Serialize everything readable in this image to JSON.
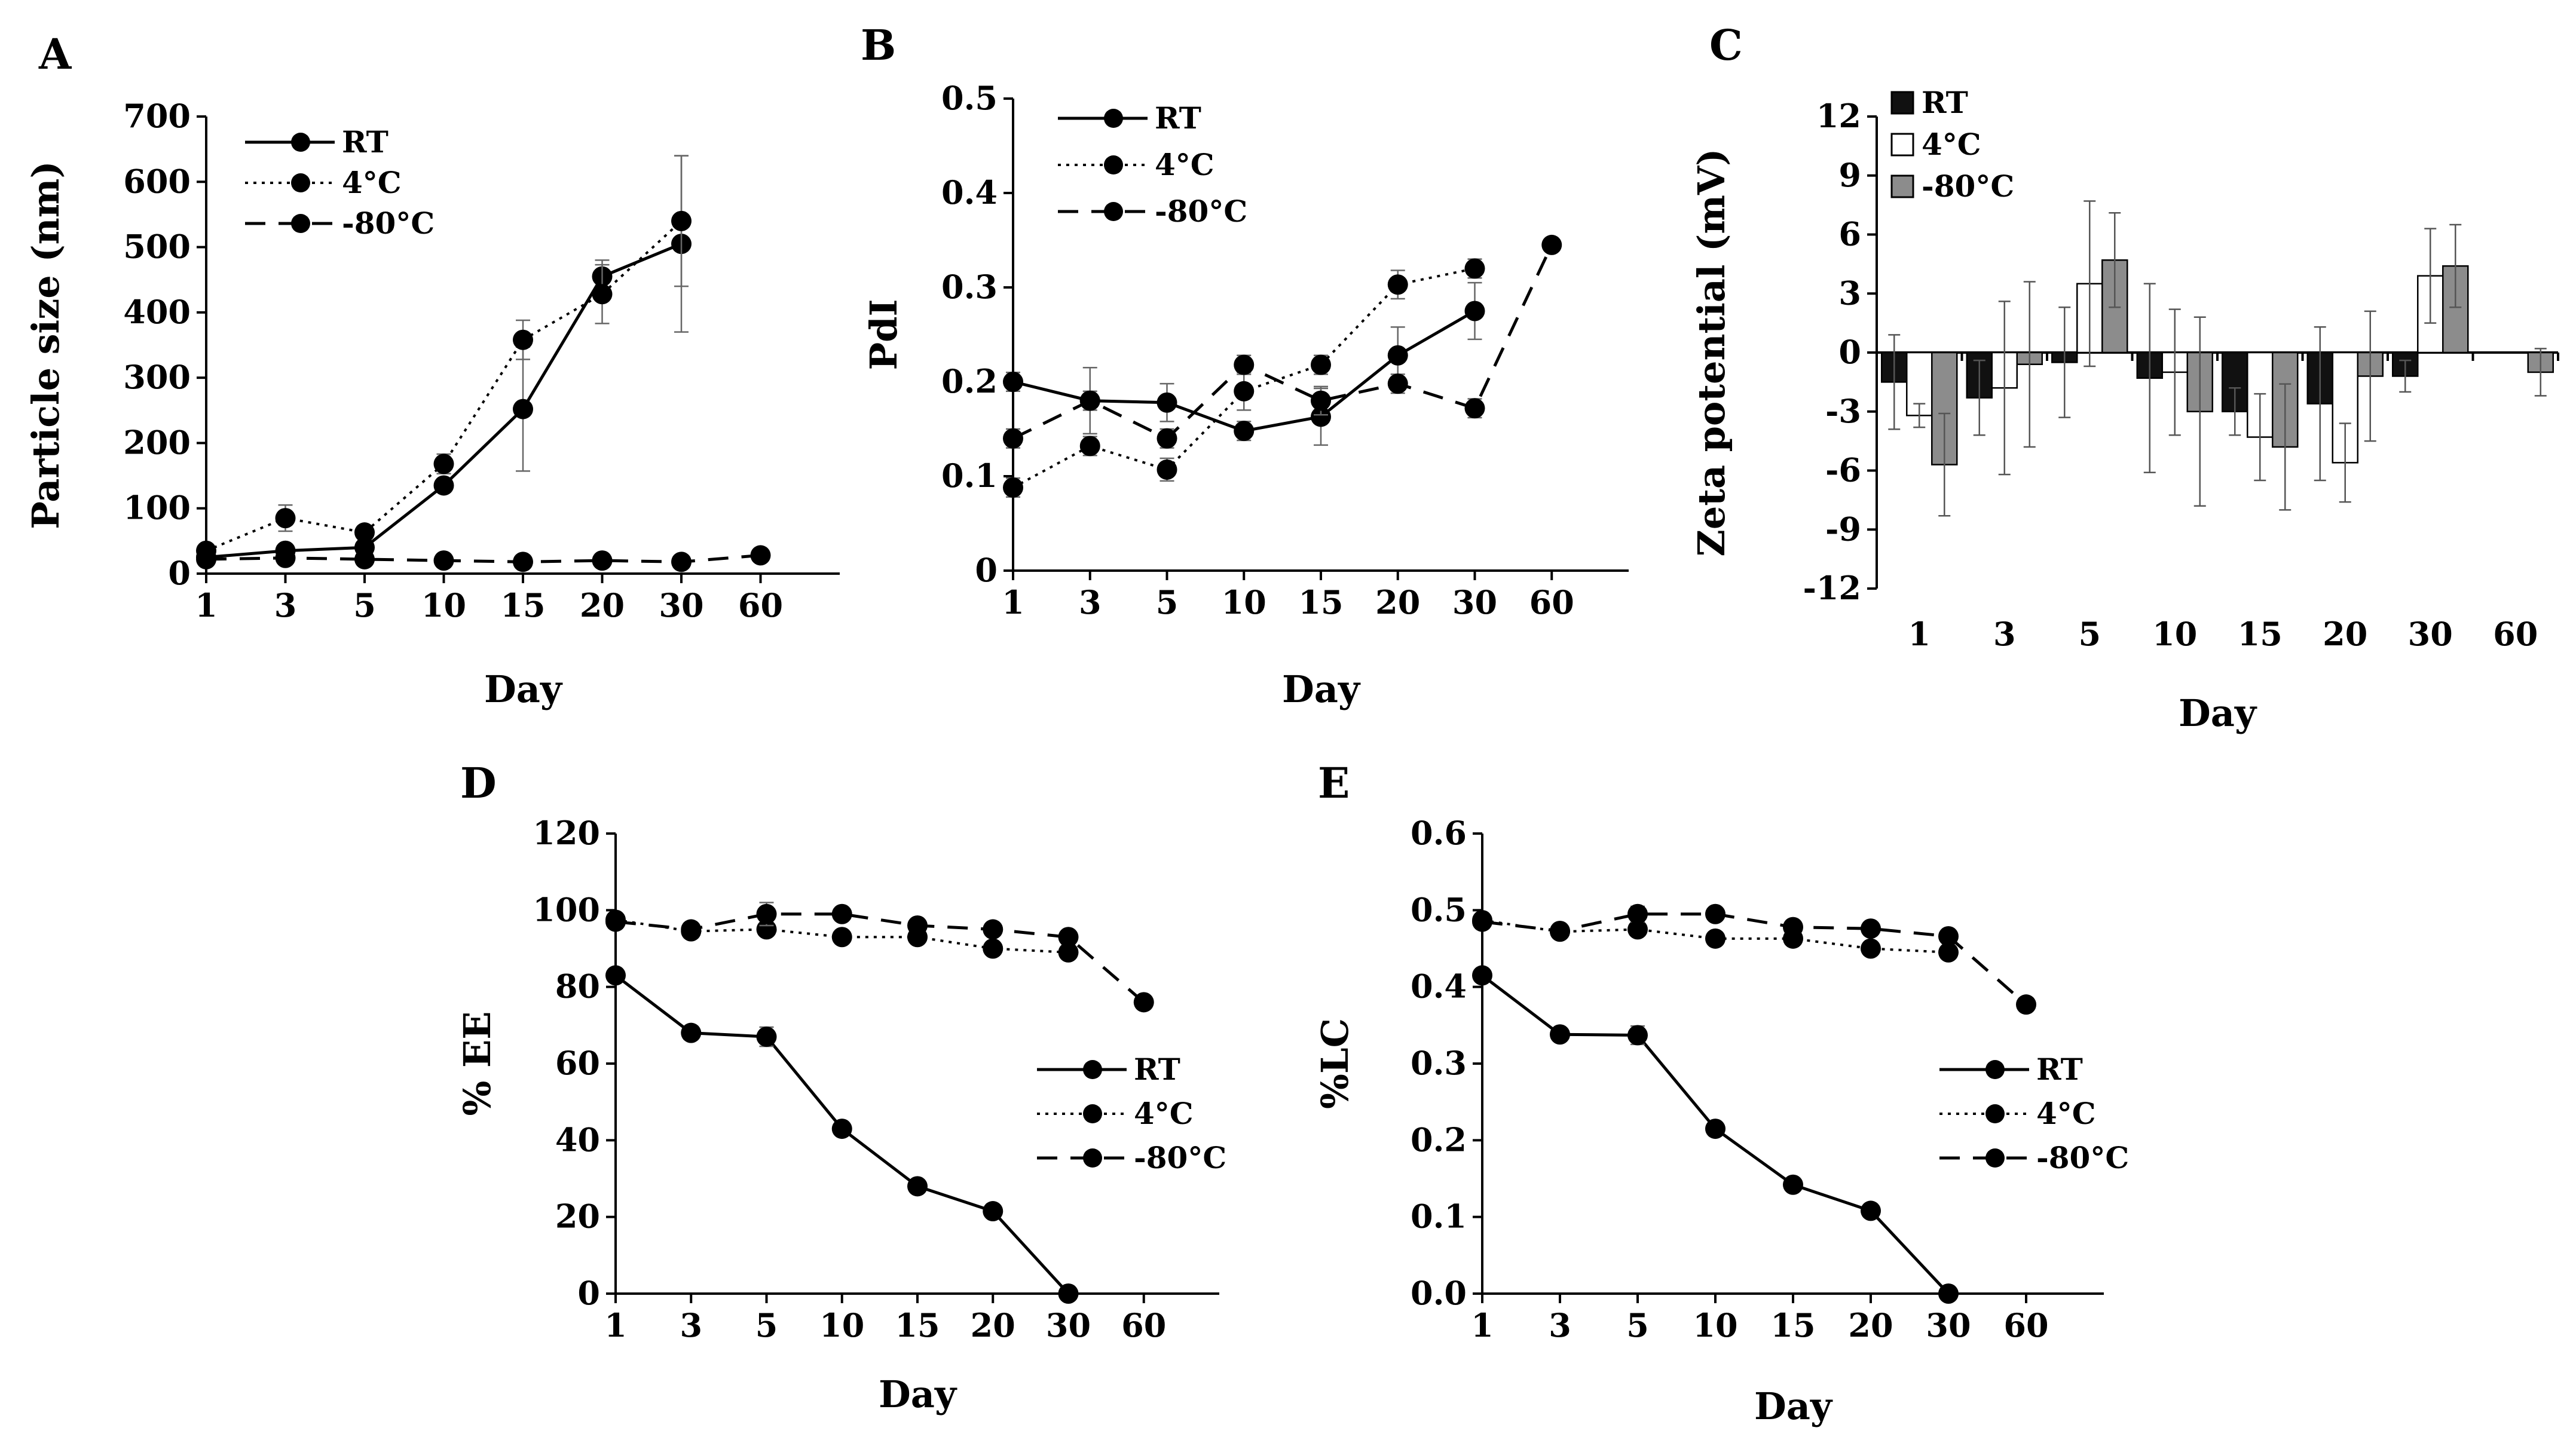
{
  "chart_data": [
    {
      "panel": "A",
      "type": "line",
      "xlabel": "Day",
      "ylabel": "Particle size (nm)",
      "categories": [
        "1",
        "3",
        "5",
        "10",
        "15",
        "20",
        "30",
        "60"
      ],
      "ylim": [
        0,
        700
      ],
      "yticks": [
        "0",
        "100",
        "200",
        "300",
        "400",
        "500",
        "600",
        "700"
      ],
      "legend": "top-left",
      "series": [
        {
          "name": "RT",
          "style": "solid",
          "values": [
            25,
            35,
            40,
            135,
            252,
            455,
            505,
            null
          ],
          "errors": [
            4,
            6,
            6,
            10,
            95,
            25,
            135,
            null
          ]
        },
        {
          "name": "4°C",
          "style": "dotted",
          "values": [
            35,
            85,
            63,
            168,
            358,
            428,
            540,
            null
          ],
          "errors": [
            5,
            20,
            8,
            15,
            30,
            45,
            100,
            null
          ]
        },
        {
          "name": "-80°C",
          "style": "dashed",
          "values": [
            22,
            24,
            22,
            20,
            18,
            20,
            18,
            28
          ],
          "errors": [
            2,
            2,
            2,
            2,
            2,
            2,
            2,
            3
          ]
        }
      ]
    },
    {
      "panel": "B",
      "type": "line",
      "xlabel": "Day",
      "ylabel": "PdI",
      "categories": [
        "1",
        "3",
        "5",
        "10",
        "15",
        "20",
        "30",
        "60"
      ],
      "ylim": [
        0,
        0.5
      ],
      "yticks": [
        "0",
        "0.1",
        "0.2",
        "0.3",
        "0.4",
        "0.5"
      ],
      "legend": "top-left",
      "series": [
        {
          "name": "RT",
          "style": "solid",
          "values": [
            0.2,
            0.18,
            0.178,
            0.148,
            0.163,
            0.228,
            0.275,
            null
          ],
          "errors": [
            0.01,
            0.035,
            0.02,
            0.01,
            0.03,
            0.03,
            0.03,
            null
          ]
        },
        {
          "name": "4°C",
          "style": "dotted",
          "values": [
            0.088,
            0.132,
            0.107,
            0.19,
            0.218,
            0.303,
            0.32,
            null
          ],
          "errors": [
            0.01,
            0.01,
            0.012,
            0.02,
            0.01,
            0.015,
            0.01,
            null
          ]
        },
        {
          "name": "-80°C",
          "style": "dashed",
          "values": [
            0.14,
            0.18,
            0.14,
            0.218,
            0.18,
            0.198,
            0.172,
            0.345
          ],
          "errors": [
            0.01,
            0.01,
            0.01,
            0.01,
            0.015,
            0.01,
            0.01,
            0.005
          ]
        }
      ]
    },
    {
      "panel": "C",
      "type": "bar",
      "xlabel": "Day",
      "ylabel": "Zeta potential (mV)",
      "categories": [
        "1",
        "3",
        "5",
        "10",
        "15",
        "20",
        "30",
        "60"
      ],
      "ylim": [
        -12,
        12
      ],
      "yticks": [
        "-12",
        "-9",
        "-6",
        "-3",
        "0",
        "3",
        "6",
        "9",
        "12"
      ],
      "legend": "top-left",
      "series": [
        {
          "name": "RT",
          "fill": "#111111",
          "values": [
            -1.5,
            -2.3,
            -0.5,
            -1.3,
            -3.0,
            -2.6,
            -1.2,
            null
          ],
          "errors": [
            2.4,
            1.9,
            2.8,
            4.8,
            1.2,
            3.9,
            0.8,
            null
          ]
        },
        {
          "name": "4°C",
          "fill": "#ffffff",
          "values": [
            -3.2,
            -1.8,
            3.5,
            -1.0,
            -4.3,
            -5.6,
            3.9,
            null
          ],
          "errors": [
            0.6,
            4.4,
            4.2,
            3.2,
            2.2,
            2.0,
            2.4,
            null
          ]
        },
        {
          "name": "-80°C",
          "fill": "#8c8c8c",
          "values": [
            -5.7,
            -0.6,
            4.7,
            -3.0,
            -4.8,
            -1.2,
            4.4,
            -1.0
          ],
          "errors": [
            2.6,
            4.2,
            2.4,
            4.8,
            3.2,
            3.3,
            2.1,
            1.2
          ]
        }
      ]
    },
    {
      "panel": "D",
      "type": "line",
      "xlabel": "Day",
      "ylabel": "% EE",
      "categories": [
        "1",
        "3",
        "5",
        "10",
        "15",
        "20",
        "30",
        "60"
      ],
      "ylim": [
        0,
        120
      ],
      "yticks": [
        "0",
        "20",
        "40",
        "60",
        "80",
        "100",
        "120"
      ],
      "legend": "bottom-right",
      "series": [
        {
          "name": "RT",
          "style": "solid",
          "values": [
            83,
            68,
            67,
            43,
            28,
            21.5,
            0,
            null
          ],
          "errors": [
            1,
            1,
            2.5,
            1,
            1,
            1,
            0.5,
            null
          ]
        },
        {
          "name": "4°C",
          "style": "dotted",
          "values": [
            97.5,
            94.5,
            95,
            93,
            93,
            90,
            89,
            null
          ],
          "errors": [
            1,
            1,
            1,
            1,
            1,
            1,
            1,
            null
          ]
        },
        {
          "name": "-80°C",
          "style": "dashed",
          "values": [
            97,
            95,
            99,
            99,
            96,
            95,
            93,
            76
          ],
          "errors": [
            1,
            1,
            3,
            1,
            1,
            1,
            1,
            1
          ]
        }
      ]
    },
    {
      "panel": "E",
      "type": "line",
      "xlabel": "Day",
      "ylabel": "%LC",
      "categories": [
        "1",
        "3",
        "5",
        "10",
        "15",
        "20",
        "30",
        "60"
      ],
      "ylim": [
        0,
        0.6
      ],
      "yticks": [
        "0.0",
        "0.1",
        "0.2",
        "0.3",
        "0.4",
        "0.5",
        "0.6"
      ],
      "legend": "bottom-right",
      "series": [
        {
          "name": "RT",
          "style": "solid",
          "values": [
            0.415,
            0.338,
            0.337,
            0.215,
            0.142,
            0.108,
            0,
            null
          ],
          "errors": [
            0.005,
            0.005,
            0.012,
            0.005,
            0.005,
            0.005,
            0.003,
            null
          ]
        },
        {
          "name": "4°C",
          "style": "dotted",
          "values": [
            0.487,
            0.472,
            0.475,
            0.463,
            0.463,
            0.45,
            0.445,
            null
          ],
          "errors": [
            0.005,
            0.005,
            0.005,
            0.005,
            0.005,
            0.005,
            0.005,
            null
          ]
        },
        {
          "name": "-80°C",
          "style": "dashed",
          "values": [
            0.485,
            0.473,
            0.495,
            0.495,
            0.478,
            0.476,
            0.466,
            0.377
          ],
          "errors": [
            0.005,
            0.005,
            0.01,
            0.005,
            0.005,
            0.005,
            0.005,
            0.005
          ]
        }
      ]
    }
  ]
}
